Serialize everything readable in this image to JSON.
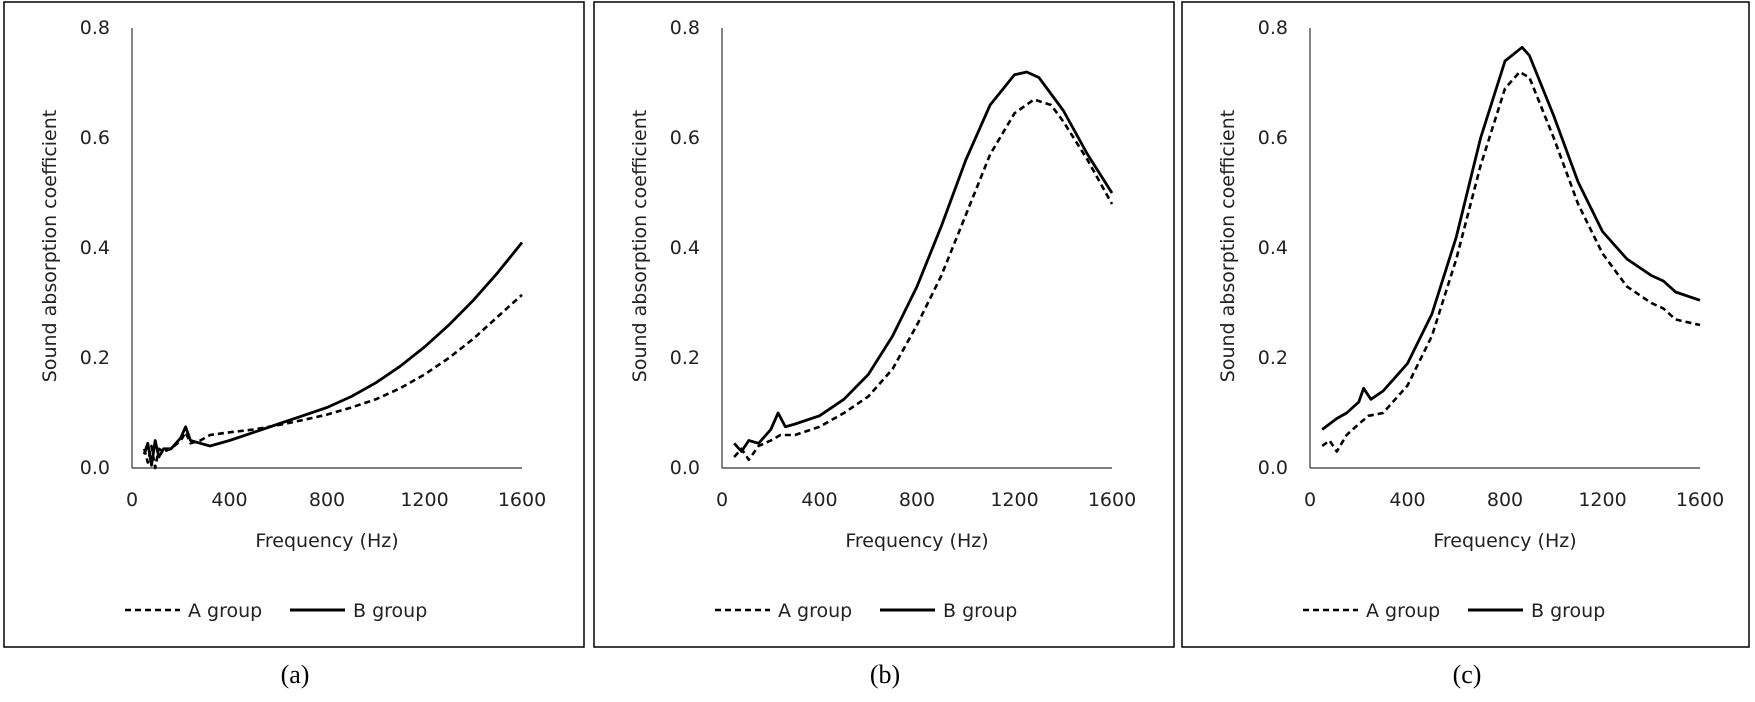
{
  "chart_data": [
    {
      "type": "line",
      "panel_label": "(a)",
      "xlabel": "Frequency (Hz)",
      "ylabel": "Sound absorption coefficient",
      "xlim": [
        0,
        1600
      ],
      "ylim": [
        0,
        0.8
      ],
      "xticks": [
        "0",
        "400",
        "800",
        "1200",
        "1600"
      ],
      "yticks": [
        "0.0",
        "0.2",
        "0.4",
        "0.6",
        "0.8"
      ],
      "grid": false,
      "legend": "bottom",
      "series": [
        {
          "name": "A group",
          "style": "dashed",
          "x": [
            50,
            65,
            80,
            95,
            110,
            130,
            160,
            200,
            220,
            240,
            280,
            320,
            400,
            500,
            600,
            700,
            800,
            900,
            1000,
            1100,
            1200,
            1300,
            1400,
            1500,
            1600
          ],
          "y": [
            0.035,
            0.01,
            0.04,
            0.0,
            0.035,
            0.03,
            0.035,
            0.05,
            0.065,
            0.045,
            0.05,
            0.06,
            0.065,
            0.07,
            0.078,
            0.087,
            0.097,
            0.11,
            0.125,
            0.145,
            0.17,
            0.2,
            0.235,
            0.275,
            0.315
          ]
        },
        {
          "name": "B group",
          "style": "solid",
          "x": [
            50,
            65,
            80,
            95,
            110,
            130,
            160,
            200,
            220,
            240,
            280,
            320,
            400,
            500,
            600,
            700,
            800,
            900,
            1000,
            1100,
            1200,
            1300,
            1400,
            1500,
            1600
          ],
          "y": [
            0.025,
            0.045,
            0.005,
            0.05,
            0.02,
            0.035,
            0.035,
            0.055,
            0.075,
            0.05,
            0.045,
            0.04,
            0.05,
            0.065,
            0.08,
            0.095,
            0.11,
            0.13,
            0.155,
            0.185,
            0.22,
            0.26,
            0.305,
            0.355,
            0.41
          ]
        }
      ]
    },
    {
      "type": "line",
      "panel_label": "(b)",
      "xlabel": "Frequency (Hz)",
      "ylabel": "Sound absorption coefficient",
      "xlim": [
        0,
        1600
      ],
      "ylim": [
        0,
        0.8
      ],
      "xticks": [
        "0",
        "400",
        "800",
        "1200",
        "1600"
      ],
      "yticks": [
        "0.0",
        "0.2",
        "0.4",
        "0.6",
        "0.8"
      ],
      "grid": false,
      "legend": "bottom",
      "series": [
        {
          "name": "A group",
          "style": "dashed",
          "x": [
            50,
            80,
            110,
            150,
            200,
            240,
            300,
            400,
            500,
            600,
            700,
            800,
            900,
            1000,
            1100,
            1200,
            1280,
            1350,
            1400,
            1500,
            1600
          ],
          "y": [
            0.02,
            0.035,
            0.015,
            0.04,
            0.05,
            0.06,
            0.06,
            0.075,
            0.1,
            0.13,
            0.18,
            0.26,
            0.35,
            0.46,
            0.57,
            0.645,
            0.67,
            0.66,
            0.63,
            0.56,
            0.48
          ]
        },
        {
          "name": "B group",
          "style": "solid",
          "x": [
            50,
            80,
            110,
            150,
            200,
            230,
            260,
            300,
            400,
            500,
            600,
            700,
            800,
            900,
            1000,
            1100,
            1200,
            1250,
            1300,
            1400,
            1500,
            1600
          ],
          "y": [
            0.045,
            0.03,
            0.05,
            0.045,
            0.07,
            0.1,
            0.075,
            0.08,
            0.095,
            0.125,
            0.17,
            0.24,
            0.33,
            0.44,
            0.56,
            0.66,
            0.715,
            0.72,
            0.71,
            0.65,
            0.57,
            0.5
          ]
        }
      ]
    },
    {
      "type": "line",
      "panel_label": "(c)",
      "xlabel": "Frequency (Hz)",
      "ylabel": "Sound absorption coefficient",
      "xlim": [
        0,
        1600
      ],
      "ylim": [
        0,
        0.8
      ],
      "xticks": [
        "0",
        "400",
        "800",
        "1200",
        "1600"
      ],
      "yticks": [
        "0.0",
        "0.2",
        "0.4",
        "0.6",
        "0.8"
      ],
      "grid": false,
      "legend": "bottom",
      "series": [
        {
          "name": "A group",
          "style": "dashed",
          "x": [
            50,
            80,
            110,
            150,
            200,
            240,
            300,
            400,
            500,
            600,
            700,
            800,
            860,
            900,
            1000,
            1100,
            1200,
            1300,
            1400,
            1450,
            1500,
            1600
          ],
          "y": [
            0.04,
            0.05,
            0.03,
            0.06,
            0.08,
            0.095,
            0.1,
            0.15,
            0.24,
            0.38,
            0.55,
            0.69,
            0.72,
            0.71,
            0.6,
            0.48,
            0.39,
            0.33,
            0.3,
            0.29,
            0.27,
            0.26
          ]
        },
        {
          "name": "B group",
          "style": "solid",
          "x": [
            50,
            80,
            110,
            150,
            200,
            220,
            250,
            300,
            400,
            500,
            600,
            700,
            800,
            870,
            900,
            1000,
            1100,
            1200,
            1300,
            1400,
            1450,
            1500,
            1600
          ],
          "y": [
            0.07,
            0.08,
            0.09,
            0.1,
            0.12,
            0.145,
            0.125,
            0.14,
            0.19,
            0.28,
            0.42,
            0.6,
            0.74,
            0.765,
            0.75,
            0.64,
            0.52,
            0.43,
            0.38,
            0.35,
            0.34,
            0.32,
            0.305
          ]
        }
      ]
    }
  ]
}
